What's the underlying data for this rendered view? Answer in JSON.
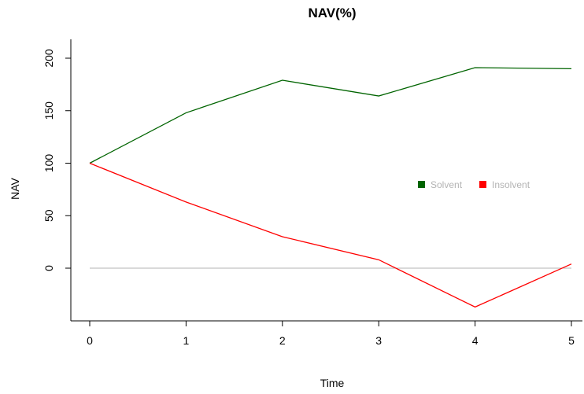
{
  "chart_data": {
    "type": "line",
    "title": "NAV(%)",
    "xlabel": "Time",
    "ylabel": "NAV",
    "x": [
      0,
      1,
      2,
      3,
      4,
      5
    ],
    "xlim": [
      0,
      5
    ],
    "ylim": [
      -45,
      200
    ],
    "xticks": [
      0,
      1,
      2,
      3,
      4,
      5
    ],
    "yticks": [
      0,
      50,
      100,
      150,
      200
    ],
    "grid": false,
    "reference_line": {
      "y": 0,
      "color": "#b3b3b3"
    },
    "legend": {
      "placement": "right-middle",
      "text_color": "#b3b3b3"
    },
    "series": [
      {
        "name": "Solvent",
        "color": "#006400",
        "values": [
          100,
          148,
          179,
          164,
          191,
          190
        ]
      },
      {
        "name": "Insolvent",
        "color": "#ff0000",
        "values": [
          100,
          63,
          30,
          8,
          -37,
          4
        ]
      }
    ]
  }
}
